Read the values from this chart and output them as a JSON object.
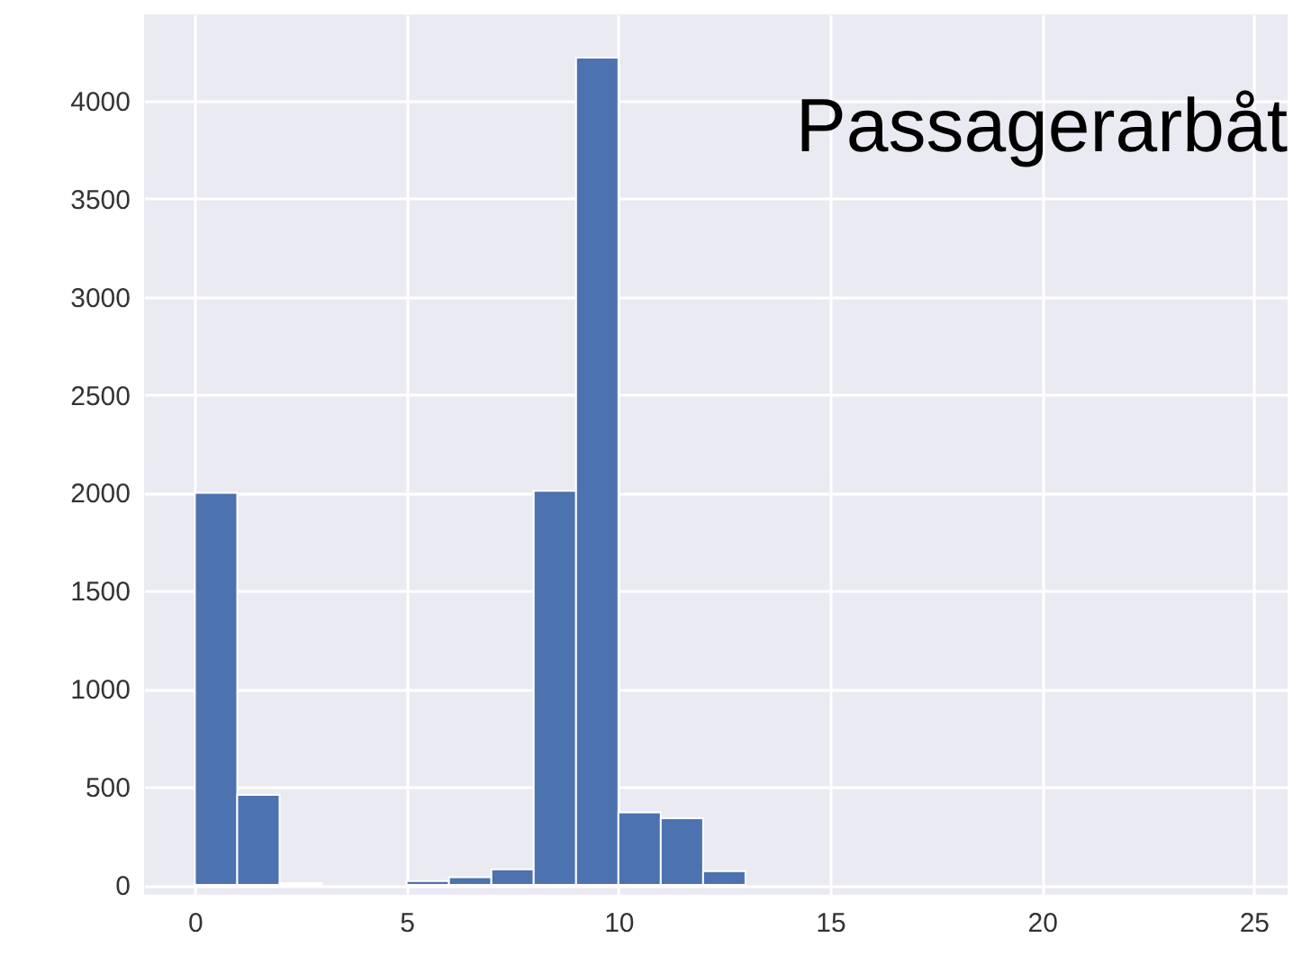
{
  "chart_data": {
    "type": "histogram",
    "title": "Passagerarbåt",
    "bins": [
      0,
      1,
      2,
      3,
      4,
      5,
      6,
      7,
      8,
      9,
      10,
      11,
      12,
      13
    ],
    "values": [
      2000,
      460,
      10,
      0,
      0,
      20,
      40,
      80,
      2010,
      4220,
      370,
      340,
      70
    ],
    "color": "#4c72b0",
    "xlim": [
      -1.2,
      25.8
    ],
    "xticks": [
      0,
      5,
      10,
      15,
      20,
      25
    ],
    "ylim": [
      -50,
      4440
    ],
    "yticks": [
      0,
      500,
      1000,
      1500,
      2000,
      2500,
      3000,
      3500,
      4000
    ],
    "grid": true
  }
}
